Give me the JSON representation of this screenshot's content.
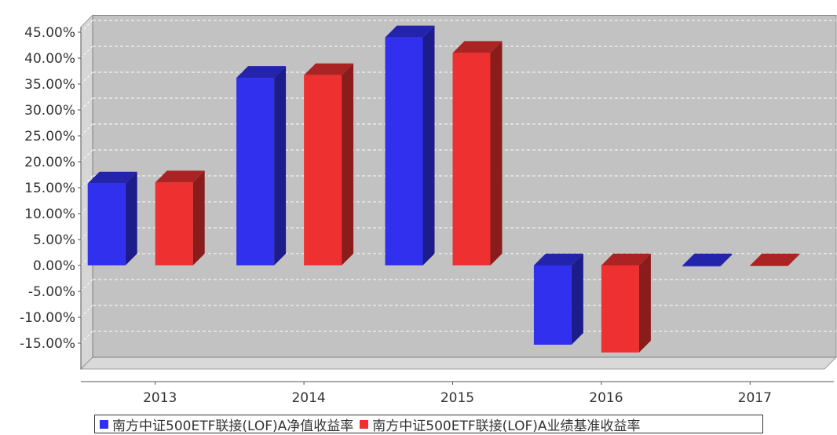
{
  "chart_data": {
    "type": "bar",
    "categories": [
      "2013",
      "2014",
      "2015",
      "2016",
      "2017"
    ],
    "series": [
      {
        "name": "南方中证500ETF联接(LOF)A净值收益率",
        "color": "#3030ee",
        "values": [
          15.8,
          36.2,
          44.0,
          -15.3,
          -0.2
        ]
      },
      {
        "name": "南方中证500ETF联接(LOF)A业绩基准收益率",
        "color": "#ee3030",
        "values": [
          16.0,
          36.7,
          41.0,
          -16.8,
          -0.1
        ]
      }
    ],
    "y_ticks": [
      "45.00%",
      "40.00%",
      "35.00%",
      "30.00%",
      "25.00%",
      "20.00%",
      "15.00%",
      "10.00%",
      "5.00%",
      "0.00%",
      "-5.00%",
      "-10.00%",
      "-15.00%"
    ],
    "ylim": [
      -20,
      46
    ],
    "grid": true,
    "legend_position": "bottom",
    "xlabel": "",
    "ylabel": ""
  }
}
